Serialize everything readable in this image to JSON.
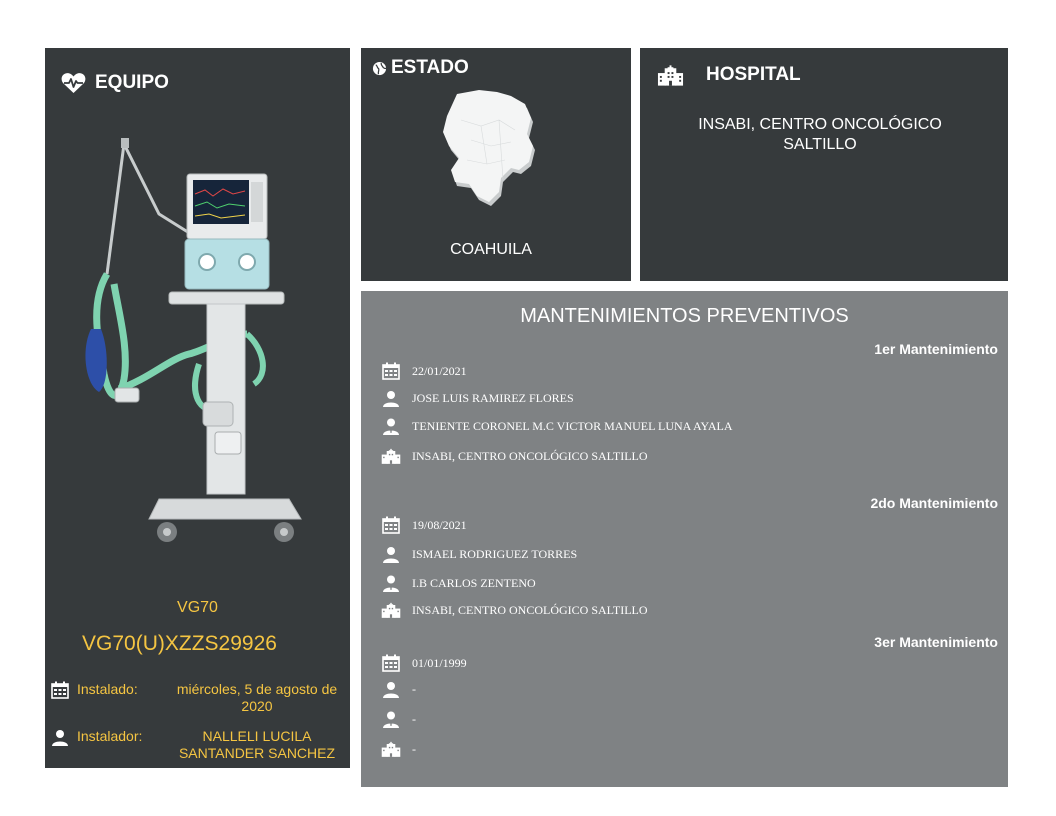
{
  "equipo": {
    "title": "EQUIPO",
    "model": "VG70",
    "serial": "VG70(U)XZZS29926",
    "installed_label": "Instalado:",
    "installed_value": "miércoles, 5 de agosto de 2020",
    "installer_label": "Instalador:",
    "installer_value": "NALLELI LUCILA SANTANDER SANCHEZ"
  },
  "estado": {
    "title": "ESTADO",
    "name": "COAHUILA"
  },
  "hospital": {
    "title": "HOSPITAL",
    "name": "INSABI, CENTRO ONCOLÓGICO SALTILLO"
  },
  "mantenimientos": {
    "title": "MANTENIMIENTOS PREVENTIVOS",
    "items": [
      {
        "title": "1er Mantenimiento",
        "date": "22/01/2021",
        "technician": "JOSE LUIS RAMIREZ FLORES",
        "supervisor": "TENIENTE CORONEL M.C VICTOR MANUEL LUNA AYALA",
        "hospital": "INSABI, CENTRO ONCOLÓGICO SALTILLO"
      },
      {
        "title": "2do Mantenimiento",
        "date": "19/08/2021",
        "technician": "ISMAEL RODRIGUEZ TORRES",
        "supervisor": "I.B CARLOS ZENTENO",
        "hospital": "INSABI, CENTRO ONCOLÓGICO SALTILLO"
      },
      {
        "title": "3er Mantenimiento",
        "date": "01/01/1999",
        "technician": "-",
        "supervisor": "-",
        "hospital": "-"
      }
    ]
  },
  "icons": {
    "equipo": "heart-pulse-icon",
    "estado": "globe-icon",
    "hospital": "hospital-icon",
    "date": "calendar-icon",
    "technician": "user-icon",
    "supervisor": "user-tie-icon",
    "location": "hospital-icon"
  },
  "colors": {
    "panel_dark": "#363a3c",
    "panel_gray": "#7f8284",
    "accent_yellow": "#f5c542",
    "text_white": "#ffffff"
  }
}
